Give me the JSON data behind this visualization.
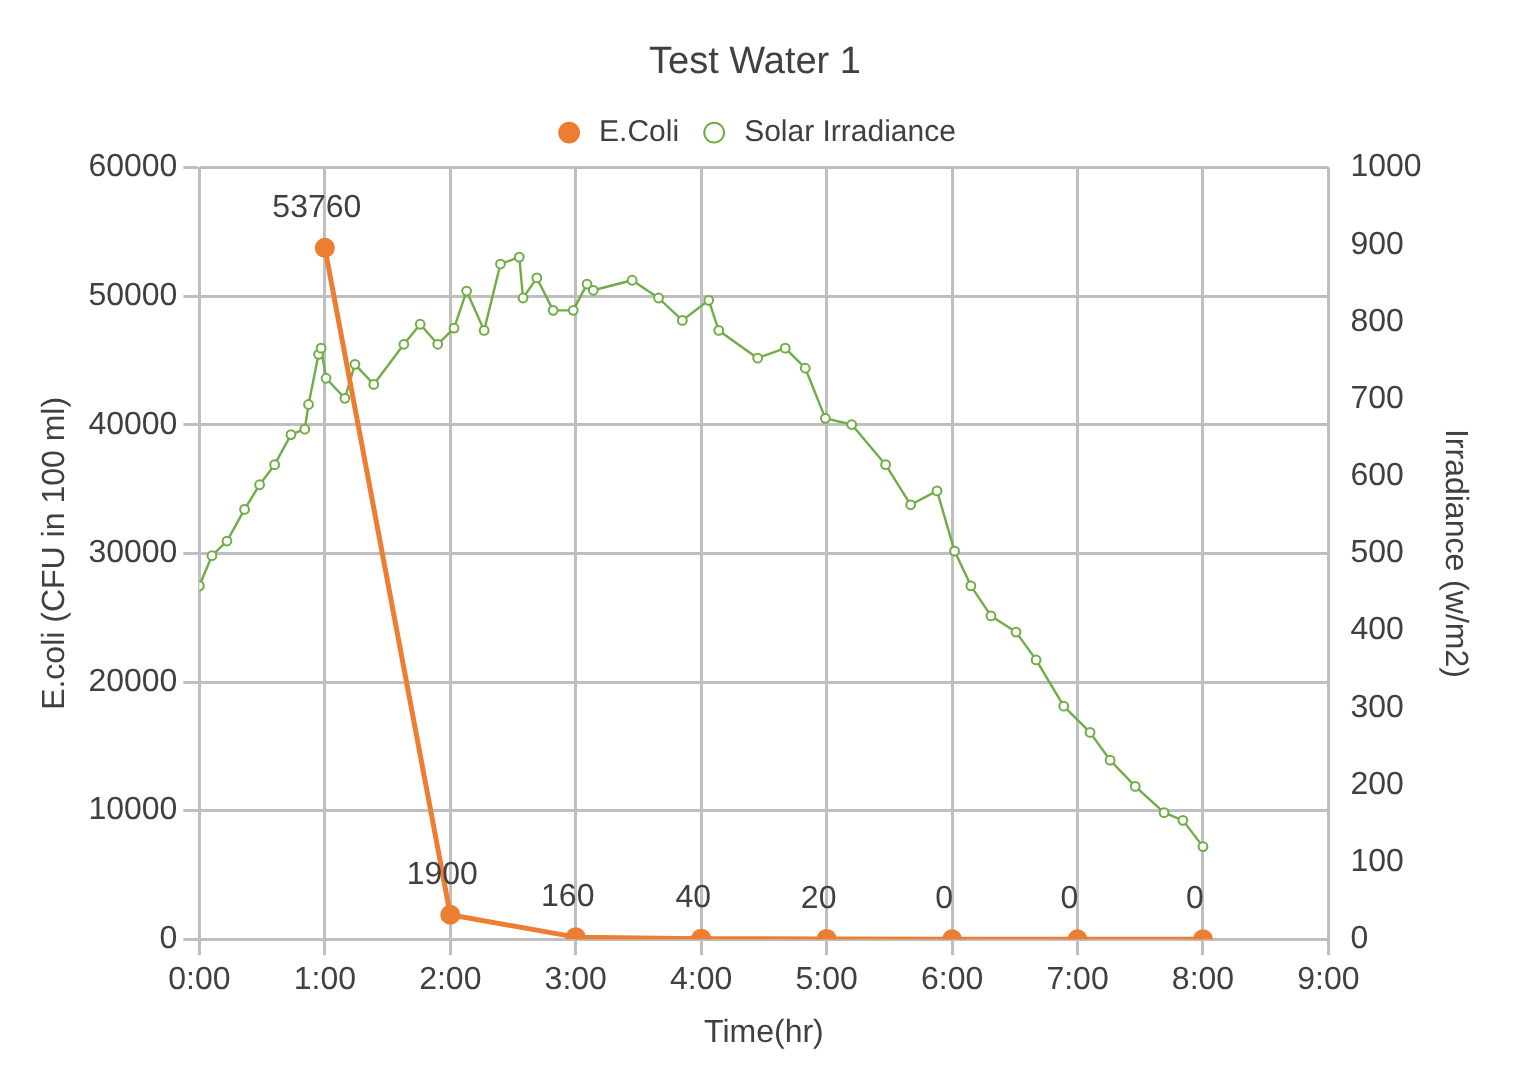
{
  "chart_data": {
    "type": "line",
    "title": "Test Water 1",
    "xlabel": "Time(hr)",
    "ylabel": "E.coli (CFU in 100 ml)",
    "y2label": "Irradiance (w/m2)",
    "xlim": [
      0,
      9
    ],
    "xticks": [
      {
        "value": 0,
        "label": "0:00"
      },
      {
        "value": 1,
        "label": "1:00"
      },
      {
        "value": 2,
        "label": "2:00"
      },
      {
        "value": 3,
        "label": "3:00"
      },
      {
        "value": 4,
        "label": "4:00"
      },
      {
        "value": 5,
        "label": "5:00"
      },
      {
        "value": 6,
        "label": "6:00"
      },
      {
        "value": 7,
        "label": "7:00"
      },
      {
        "value": 8,
        "label": "8:00"
      },
      {
        "value": 9,
        "label": "9:00"
      }
    ],
    "ylim": [
      0,
      60000
    ],
    "yticks": [
      0,
      10000,
      20000,
      30000,
      40000,
      50000,
      60000
    ],
    "y2lim": [
      0,
      1000
    ],
    "y2ticks": [
      0,
      100,
      200,
      300,
      400,
      500,
      600,
      700,
      800,
      900,
      1000
    ],
    "grid": true,
    "legend": "top",
    "series": [
      {
        "name": "E.Coli",
        "color": "#ed7d31",
        "marker": "circle",
        "data_labels": true,
        "x": [
          1,
          2,
          3,
          4,
          5,
          6,
          7,
          8
        ],
        "values": [
          53760,
          1900,
          160,
          40,
          20,
          0,
          0,
          0
        ]
      },
      {
        "name": "Solar Irradiance",
        "color": "#70ad47",
        "marker": "circle",
        "axis": "y2",
        "x": [
          0,
          0.1,
          0.22,
          0.36,
          0.48,
          0.6,
          0.73,
          0.84,
          0.87,
          0.95,
          0.97,
          1.01,
          1.16,
          1.24,
          1.39,
          1.63,
          1.76,
          1.9,
          2.03,
          2.13,
          2.27,
          2.4,
          2.55,
          2.58,
          2.69,
          2.82,
          2.98,
          3.09,
          3.14,
          3.45,
          3.66,
          3.85,
          4.06,
          4.14,
          4.45,
          4.67,
          4.83,
          4.99,
          5.2,
          5.47,
          5.67,
          5.88,
          6.02,
          6.15,
          6.31,
          6.51,
          6.67,
          6.89,
          7.1,
          7.26,
          7.46,
          7.69,
          7.84,
          8.0
        ],
        "values": [
          458,
          497,
          516,
          557,
          589,
          615,
          654,
          661,
          693,
          758,
          766,
          727,
          701,
          745,
          719,
          771,
          797,
          771,
          792,
          840,
          789,
          875,
          884,
          831,
          857,
          815,
          815,
          849,
          841,
          854,
          831,
          802,
          828,
          789,
          753,
          766,
          740,
          675,
          667,
          615,
          563,
          581,
          503,
          458,
          419,
          398,
          362,
          302,
          268,
          232,
          198,
          164,
          154,
          120
        ]
      }
    ]
  }
}
